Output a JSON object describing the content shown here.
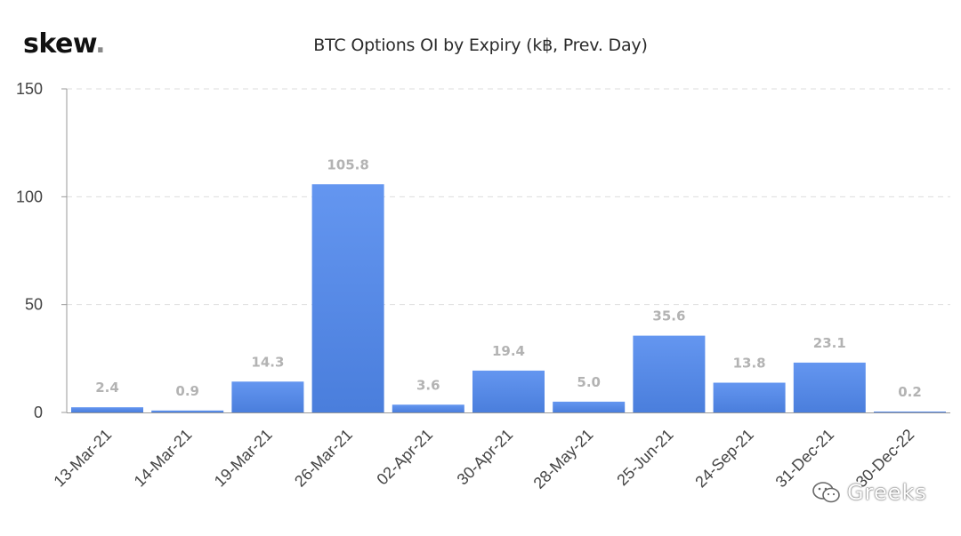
{
  "brand": {
    "logo_text": "skew",
    "logo_dot": "."
  },
  "watermark": {
    "text": "Greeks",
    "icon": "wechat-icon"
  },
  "colors": {
    "bar_top": "#6496f0",
    "bar_bottom": "#4a7edc",
    "grid": "#dddddd",
    "axis": "#999999",
    "label": "#b3b3b3",
    "tick_text": "#444444"
  },
  "chart_data": {
    "type": "bar",
    "title": "BTC Options OI by Expiry (k฿, Prev. Day)",
    "xlabel": "",
    "ylabel": "",
    "ylim": [
      0,
      150
    ],
    "yticks": [
      0,
      50,
      100,
      150
    ],
    "grid": true,
    "categories": [
      "13-Mar-21",
      "14-Mar-21",
      "19-Mar-21",
      "26-Mar-21",
      "02-Apr-21",
      "30-Apr-21",
      "28-May-21",
      "25-Jun-21",
      "24-Sep-21",
      "31-Dec-21",
      "30-Dec-22"
    ],
    "values": [
      2.4,
      0.9,
      14.3,
      105.8,
      3.6,
      19.4,
      5.0,
      35.6,
      13.8,
      23.1,
      0.2
    ],
    "data_labels": [
      "2.4",
      "0.9",
      "14.3",
      "105.8",
      "3.6",
      "19.4",
      "5.0",
      "35.6",
      "13.8",
      "23.1",
      "0.2"
    ]
  }
}
